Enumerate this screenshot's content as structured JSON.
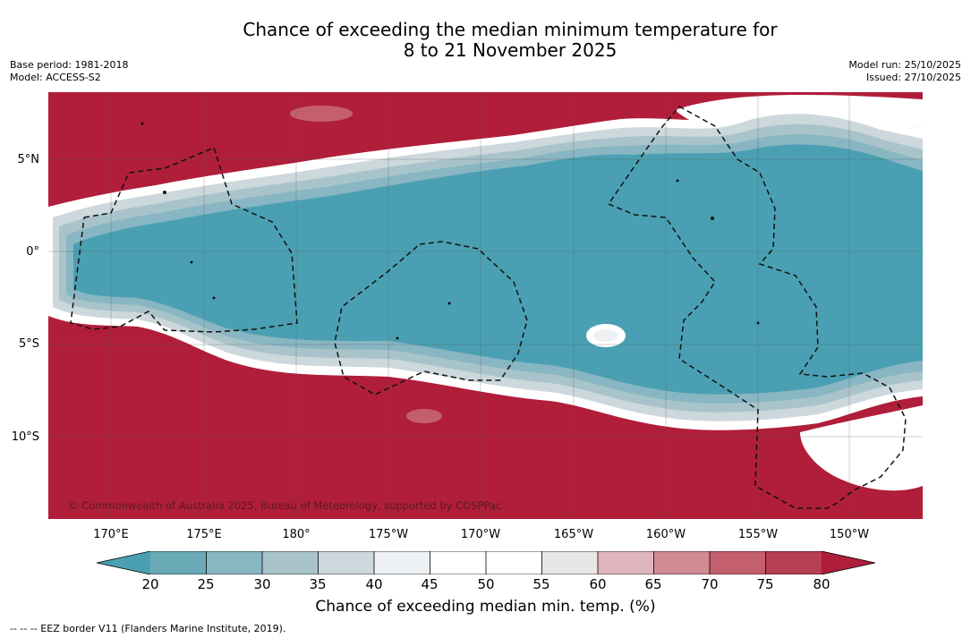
{
  "title": {
    "line1": "Chance of exceeding the median minimum temperature for",
    "line2": "8 to 21 November 2025"
  },
  "meta": {
    "base_period": "Base period: 1981-2018",
    "model": "Model: ACCESS-S2",
    "model_run": "Model run: 25/10/2025",
    "issued": "Issued: 27/10/2025"
  },
  "axes": {
    "lat_labels": [
      "5°N",
      "0°",
      "5°S",
      "10°S"
    ],
    "lon_labels": [
      "170°E",
      "175°E",
      "180°",
      "175°W",
      "170°W",
      "165°W",
      "160°W",
      "155°W",
      "150°W"
    ]
  },
  "copyright": "© Commonwealth of Australia 2025, Bureau of Meteorology, supported by COSPPac",
  "colorbar": {
    "label": "Chance of exceeding median min. temp. (%)",
    "ticks": [
      "20",
      "25",
      "30",
      "35",
      "40",
      "45",
      "50",
      "55",
      "60",
      "65",
      "70",
      "75",
      "80"
    ],
    "colors": {
      "below20": "#4aa0b2",
      "c20_25": "#6aaab6",
      "c25_30": "#88b6c2",
      "c30_35": "#a8c4ca",
      "c35_40": "#cdd8dc",
      "c40_45": "#eef1f3",
      "c45_50": "#ffffff",
      "c50_55": "#ffffff",
      "c55_60": "#e8e6e6",
      "c60_65": "#dfb6bd",
      "c65_70": "#d28a94",
      "c70_75": "#c4606e",
      "c75_80": "#b83f52",
      "above80": "#b01e3a"
    }
  },
  "legend_note": "--  --  -- EEZ border V11 (Flanders Marine Institute, 2019)."
}
